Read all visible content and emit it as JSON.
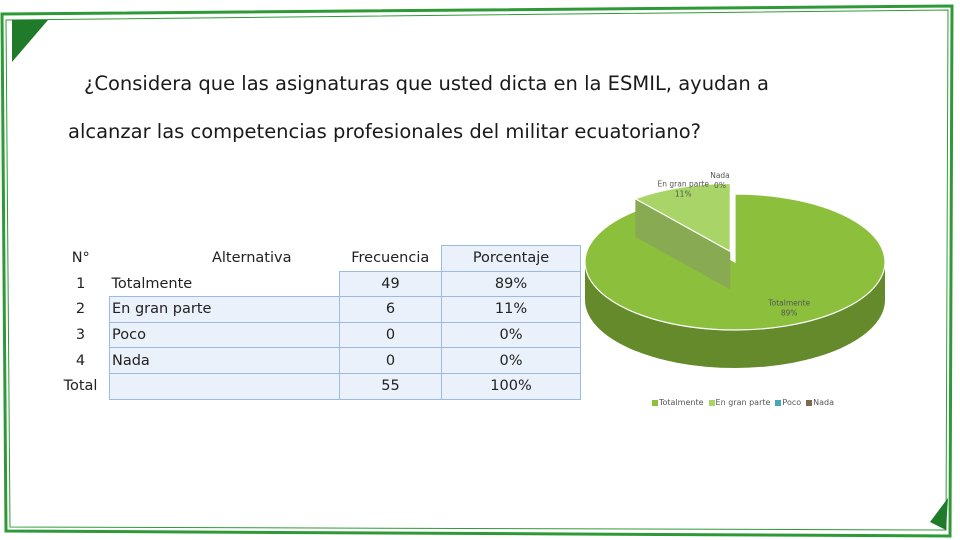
{
  "question": {
    "line1": "¿Considera que las asignaturas que usted dicta en la ESMIL, ayudan a",
    "line2": "alcanzar las competencias profesionales del militar ecuatoriano?"
  },
  "table": {
    "headers": [
      "N°",
      "Alternativa",
      "Frecuencia",
      "Porcentaje"
    ],
    "rows": [
      {
        "n": "1",
        "alt": "Totalmente",
        "f": "49",
        "p": "89%"
      },
      {
        "n": "2",
        "alt": "En gran parte",
        "f": "6",
        "p": "11%"
      },
      {
        "n": "3",
        "alt": "Poco",
        "f": "0",
        "p": "0%"
      },
      {
        "n": "4",
        "alt": "Nada",
        "f": "0",
        "p": "0%"
      }
    ],
    "total": {
      "label": "Total",
      "f": "55",
      "p": "100%"
    }
  },
  "chart_data": {
    "type": "pie",
    "title": "",
    "categories": [
      "Totalmente",
      "En gran parte",
      "Poco",
      "Nada"
    ],
    "values": [
      49,
      6,
      0,
      0
    ],
    "percent_labels": [
      "89%",
      "11%",
      "0%",
      "0%"
    ],
    "data_labels": [
      {
        "name": "Totalmente",
        "pct": "89%"
      },
      {
        "name": "En gran parte",
        "pct": "11%"
      },
      {
        "name": "Nada",
        "pct": "0%"
      }
    ],
    "colors": [
      "#8bbf3c",
      "#a9d467",
      "#4aa6b8",
      "#7a6a4f"
    ],
    "legend_position": "bottom",
    "style": "3d-exploded"
  },
  "frame_colors": {
    "border": "#2e9a37",
    "accent": "#1f7a2a"
  }
}
